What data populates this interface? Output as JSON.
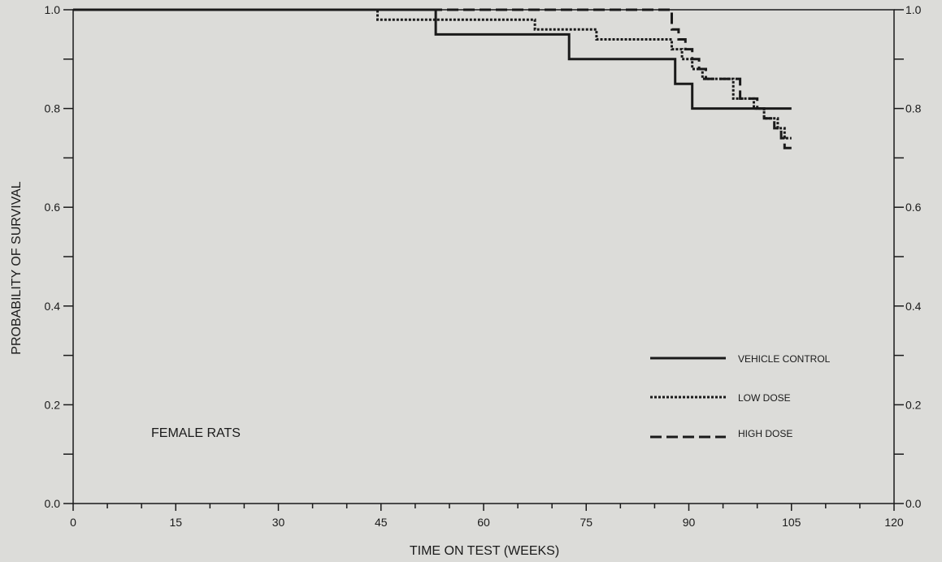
{
  "chart_data": {
    "type": "line",
    "step": true,
    "xlabel": "TIME ON TEST (WEEKS)",
    "ylabel": "PROBABILITY OF SURVIVAL",
    "xlim": [
      0,
      120
    ],
    "ylim": [
      0,
      1.0
    ],
    "x_ticks": [
      0,
      15,
      30,
      45,
      60,
      75,
      90,
      105,
      120
    ],
    "x_tick_labels": [
      "0",
      "15",
      "30",
      "45",
      "60",
      "75",
      "90",
      "105",
      "120"
    ],
    "y_ticks_left": [
      0.0,
      0.2,
      0.4,
      0.6,
      0.8,
      1.0
    ],
    "y_tick_labels_left": [
      "0.0",
      "0.2",
      "0.4",
      "0.6",
      "0.8",
      "1.0"
    ],
    "y_ticks_right": [
      0.0,
      0.2,
      0.4,
      0.6,
      0.8,
      1.0
    ],
    "y_tick_labels_right": [
      "0.0",
      "0.2",
      "0.4",
      "0.6",
      "0.8",
      "1.0"
    ],
    "annotation": "FEMALE RATS",
    "grid": false,
    "legend_position": "lower-right",
    "series": [
      {
        "name": "VEHICLE CONTROL",
        "style": "solid",
        "x": [
          0,
          53,
          53,
          72.5,
          72.5,
          88,
          88,
          90.5,
          90.5,
          105
        ],
        "y": [
          1.0,
          1.0,
          0.95,
          0.95,
          0.9,
          0.9,
          0.85,
          0.85,
          0.8,
          0.8
        ]
      },
      {
        "name": "LOW DOSE",
        "style": "dotted",
        "x": [
          0,
          44.5,
          44.5,
          67.5,
          67.5,
          76.5,
          76.5,
          87.5,
          87.5,
          89,
          89,
          90.5,
          90.5,
          92,
          92,
          96.5,
          96.5,
          99.5,
          99.5,
          101,
          101,
          103,
          103,
          104,
          104,
          105
        ],
        "y": [
          1.0,
          1.0,
          0.98,
          0.98,
          0.96,
          0.96,
          0.94,
          0.94,
          0.92,
          0.92,
          0.9,
          0.9,
          0.88,
          0.88,
          0.86,
          0.86,
          0.82,
          0.82,
          0.8,
          0.8,
          0.78,
          0.78,
          0.76,
          0.76,
          0.74,
          0.74
        ]
      },
      {
        "name": "HIGH DOSE",
        "style": "dashed",
        "x": [
          0,
          53,
          53,
          68.5,
          68.5,
          87.5,
          87.5,
          88.5,
          88.5,
          89.5,
          89.5,
          90.5,
          90.5,
          91.5,
          91.5,
          92.5,
          92.5,
          97.5,
          97.5,
          100,
          100,
          101,
          101,
          102.5,
          102.5,
          103.5,
          103.5,
          104,
          104,
          105
        ],
        "y": [
          1.0,
          1.0,
          1.0,
          1.0,
          1.0,
          1.0,
          0.96,
          0.96,
          0.94,
          0.94,
          0.92,
          0.92,
          0.9,
          0.9,
          0.88,
          0.88,
          0.86,
          0.86,
          0.82,
          0.82,
          0.8,
          0.8,
          0.78,
          0.78,
          0.76,
          0.76,
          0.74,
          0.74,
          0.72,
          0.72
        ]
      }
    ]
  }
}
